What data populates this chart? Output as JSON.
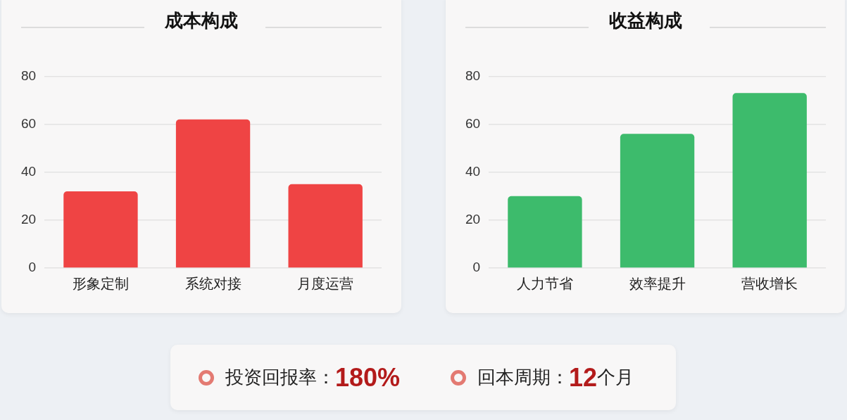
{
  "chart_data": [
    {
      "type": "bar",
      "title": "成本构成",
      "categories": [
        "形象定制",
        "系统对接",
        "月度运营"
      ],
      "values": [
        32,
        62,
        35
      ],
      "color": "#ef4444",
      "ylim": [
        0,
        80
      ],
      "yticks": [
        0,
        20,
        40,
        60,
        80
      ],
      "grid": "y"
    },
    {
      "type": "bar",
      "title": "收益构成",
      "categories": [
        "人力节省",
        "效率提升",
        "营收增长"
      ],
      "values": [
        30,
        56,
        73
      ],
      "color": "#3dbb6c",
      "ylim": [
        0,
        80
      ],
      "yticks": [
        0,
        20,
        40,
        60,
        80
      ],
      "grid": "y"
    },
    {
      "type": "other",
      "annotations": [
        "投资回报率：180%",
        "回本周期：12个月"
      ]
    }
  ]
}
